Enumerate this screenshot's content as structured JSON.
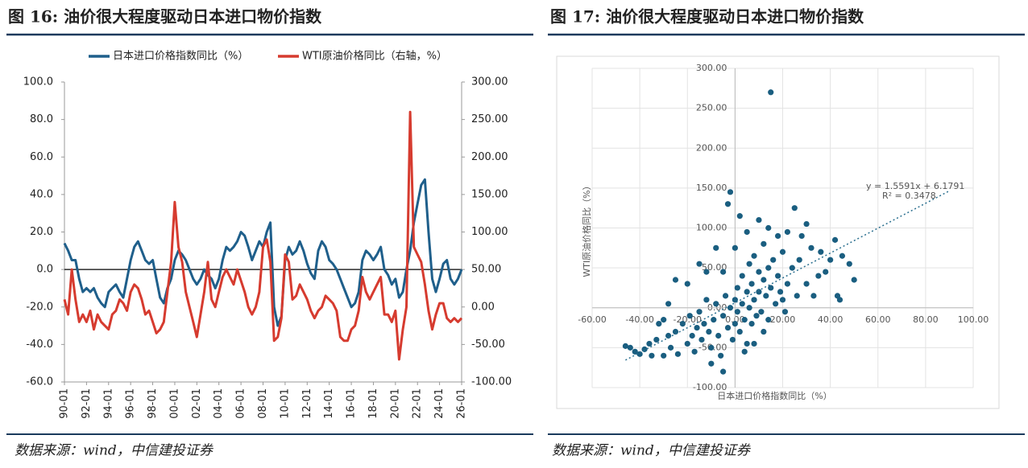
{
  "chart_data": [
    {
      "type": "line",
      "title": "图 16: 油价很大程度驱动日本进口物价指数",
      "source": "数据来源：wind，中信建投证券",
      "categories": [
        "90-01",
        null,
        null,
        null,
        null,
        null,
        "92-01",
        null,
        null,
        null,
        null,
        null,
        "94-01",
        null,
        null,
        null,
        null,
        null,
        "96-01",
        null,
        null,
        null,
        null,
        null,
        "98-01",
        null,
        null,
        null,
        null,
        null,
        "00-01",
        null,
        null,
        null,
        null,
        null,
        "02-01",
        null,
        null,
        null,
        null,
        null,
        "04-01",
        null,
        null,
        null,
        null,
        null,
        "06-01",
        null,
        null,
        null,
        null,
        null,
        "08-01",
        null,
        null,
        null,
        null,
        null,
        "10-01",
        null,
        null,
        null,
        null,
        null,
        "12-01",
        null,
        null,
        null,
        null,
        null,
        "14-01",
        null,
        null,
        null,
        null,
        null,
        "16-01",
        null,
        null,
        null,
        null,
        null,
        "18-01",
        null,
        null,
        null,
        null,
        null,
        "20-01",
        null,
        null,
        null,
        null,
        null,
        "22-01",
        null,
        null,
        null,
        null,
        null,
        "24-01",
        null,
        null,
        null,
        null,
        null,
        "26-01"
      ],
      "series": [
        {
          "name": "日本进口价格指数同比（%）",
          "color": "#1f5f8b",
          "values": [
            14,
            10,
            5,
            5,
            -5,
            -12,
            -10,
            -12,
            -10,
            -15,
            -18,
            -20,
            -12,
            -10,
            -8,
            -12,
            -15,
            -5,
            5,
            12,
            15,
            10,
            5,
            3,
            5,
            -5,
            -15,
            -18,
            -10,
            -5,
            5,
            10,
            8,
            5,
            0,
            -5,
            -8,
            -5,
            0,
            -3,
            -5,
            -10,
            -5,
            5,
            12,
            10,
            12,
            15,
            20,
            18,
            12,
            5,
            10,
            15,
            12,
            20,
            25,
            -20,
            -30,
            -25,
            5,
            12,
            8,
            10,
            15,
            10,
            3,
            -2,
            -5,
            10,
            15,
            12,
            5,
            3,
            0,
            -5,
            -10,
            -15,
            -20,
            -18,
            -12,
            5,
            10,
            8,
            5,
            8,
            12,
            0,
            -3,
            -8,
            -5,
            -15,
            -12,
            0,
            10,
            25,
            35,
            45,
            48,
            20,
            -5,
            -12,
            -5,
            3,
            5,
            -5,
            -8,
            -5,
            0
          ]
        },
        {
          "name": "WTI原油价格同比（右轴，%）",
          "color": "#d63b2f",
          "axis": "y2",
          "values": [
            10,
            -10,
            50,
            10,
            -20,
            -10,
            -20,
            -5,
            -30,
            -10,
            -20,
            -25,
            -30,
            -10,
            -5,
            10,
            5,
            -5,
            20,
            30,
            25,
            10,
            -10,
            -5,
            -20,
            -35,
            -30,
            -20,
            20,
            60,
            140,
            80,
            60,
            20,
            0,
            -20,
            -40,
            -10,
            20,
            60,
            10,
            0,
            20,
            40,
            50,
            40,
            30,
            50,
            35,
            20,
            0,
            -10,
            0,
            20,
            80,
            90,
            60,
            -45,
            -40,
            -15,
            70,
            60,
            10,
            15,
            30,
            20,
            10,
            -5,
            -15,
            -5,
            0,
            15,
            10,
            5,
            -5,
            -40,
            -45,
            -45,
            -30,
            -25,
            -5,
            40,
            20,
            10,
            20,
            30,
            40,
            -10,
            -10,
            -20,
            -5,
            -70,
            -30,
            0,
            260,
            80,
            70,
            60,
            30,
            -5,
            -30,
            -10,
            5,
            5,
            -15,
            -20,
            -15,
            -20,
            -15
          ]
        }
      ],
      "ylim": [
        -60,
        100
      ],
      "yticks": [
        {
          "value": -60,
          "label": "-60.0"
        },
        {
          "value": -40,
          "label": "-40.0"
        },
        {
          "value": -20,
          "label": "-20.0"
        },
        {
          "value": 0,
          "label": "0.0"
        },
        {
          "value": 20,
          "label": "20.0"
        },
        {
          "value": 40,
          "label": "40.0"
        },
        {
          "value": 60,
          "label": "60.0"
        },
        {
          "value": 80,
          "label": "80.0"
        },
        {
          "value": 100,
          "label": "100.0"
        }
      ],
      "y2lim": [
        -100,
        300
      ],
      "y2ticks": [
        {
          "value": -100,
          "label": "-100.00"
        },
        {
          "value": -50,
          "label": "-50.00"
        },
        {
          "value": 0,
          "label": "0.00"
        },
        {
          "value": 50,
          "label": "50.00"
        },
        {
          "value": 100,
          "label": "100.00"
        },
        {
          "value": 150,
          "label": "150.00"
        },
        {
          "value": 200,
          "label": "200.00"
        },
        {
          "value": 250,
          "label": "250.00"
        },
        {
          "value": 300,
          "label": "300.00"
        }
      ],
      "legend": "top"
    },
    {
      "type": "scatter",
      "title": "图 17: 油价很大程度驱动日本进口物价指数",
      "source": "数据来源：wind，中信建投证券",
      "xlabel": "日本进口价格指数同比（%）",
      "ylabel": "WTI原油价格同比（%）",
      "color": "#1a5e80",
      "grid": true,
      "x": [
        -46,
        -44,
        -42,
        -40,
        -38,
        -36,
        -35,
        -33,
        -30,
        -28,
        -27,
        -25,
        -24,
        -22,
        -20,
        -19,
        -18,
        -17,
        -16,
        -15,
        -14,
        -13,
        -12,
        -11,
        -10,
        -9,
        -8,
        -7,
        -6,
        -5,
        -5,
        -4,
        -3,
        -2,
        -1,
        0,
        0,
        1,
        1,
        2,
        3,
        3,
        4,
        5,
        5,
        6,
        6,
        7,
        7,
        8,
        8,
        9,
        10,
        10,
        11,
        12,
        12,
        13,
        14,
        14,
        15,
        15,
        16,
        17,
        18,
        18,
        19,
        20,
        20,
        21,
        22,
        22,
        24,
        25,
        26,
        27,
        28,
        30,
        30,
        32,
        33,
        35,
        36,
        38,
        40,
        42,
        43,
        44,
        45,
        48,
        50,
        -2,
        -3,
        -8,
        -12,
        -20,
        -25,
        -15,
        -5,
        0,
        5,
        10,
        14,
        2,
        -28,
        -32,
        -30,
        8,
        12,
        4,
        -10
      ],
      "values": [
        -48,
        -50,
        -55,
        -58,
        -52,
        -45,
        -60,
        -40,
        -15,
        -35,
        -50,
        -30,
        -58,
        -20,
        -45,
        -10,
        -35,
        -55,
        -25,
        -5,
        -40,
        -20,
        10,
        -30,
        -50,
        -15,
        5,
        -35,
        -60,
        -80,
        -10,
        15,
        -25,
        0,
        -40,
        10,
        -20,
        25,
        -5,
        -30,
        40,
        5,
        -15,
        20,
        -45,
        55,
        0,
        30,
        -20,
        10,
        65,
        -10,
        45,
        20,
        -5,
        35,
        80,
        15,
        50,
        -15,
        25,
        270,
        60,
        5,
        40,
        90,
        20,
        10,
        70,
        -5,
        95,
        30,
        50,
        125,
        15,
        60,
        90,
        105,
        30,
        75,
        15,
        40,
        70,
        45,
        60,
        85,
        15,
        10,
        65,
        55,
        35,
        145,
        130,
        75,
        45,
        30,
        35,
        55,
        45,
        75,
        95,
        110,
        100,
        115,
        5,
        -20,
        -60,
        -45,
        -30,
        -55,
        -70
      ],
      "xlim": [
        -60,
        100
      ],
      "xticks": [
        {
          "value": -60,
          "label": "-60.00"
        },
        {
          "value": -40,
          "label": "-40.00"
        },
        {
          "value": -20,
          "label": "-20.00"
        },
        {
          "value": 0,
          "label": "0.00"
        },
        {
          "value": 20,
          "label": "20.00"
        },
        {
          "value": 40,
          "label": "40.00"
        },
        {
          "value": 60,
          "label": "60.00"
        },
        {
          "value": 80,
          "label": "80.00"
        },
        {
          "value": 100,
          "label": "100.00"
        }
      ],
      "ylim": [
        -100,
        300
      ],
      "yticks": [
        {
          "value": -100,
          "label": "-100.00"
        },
        {
          "value": -50,
          "label": "-50.00"
        },
        {
          "value": 0,
          "label": "0.00"
        },
        {
          "value": 50,
          "label": "50.00"
        },
        {
          "value": 100,
          "label": "100.00"
        },
        {
          "value": 150,
          "label": "150.00"
        },
        {
          "value": 200,
          "label": "200.00"
        },
        {
          "value": 250,
          "label": "250.00"
        },
        {
          "value": 300,
          "label": "300.00"
        }
      ],
      "trendline": {
        "label": "y = 1.5591x + 6.1791",
        "r2_label": "R² = 0.3478",
        "slope": 1.5591,
        "intercept": 6.1791,
        "x": [
          -46,
          90
        ]
      }
    }
  ]
}
